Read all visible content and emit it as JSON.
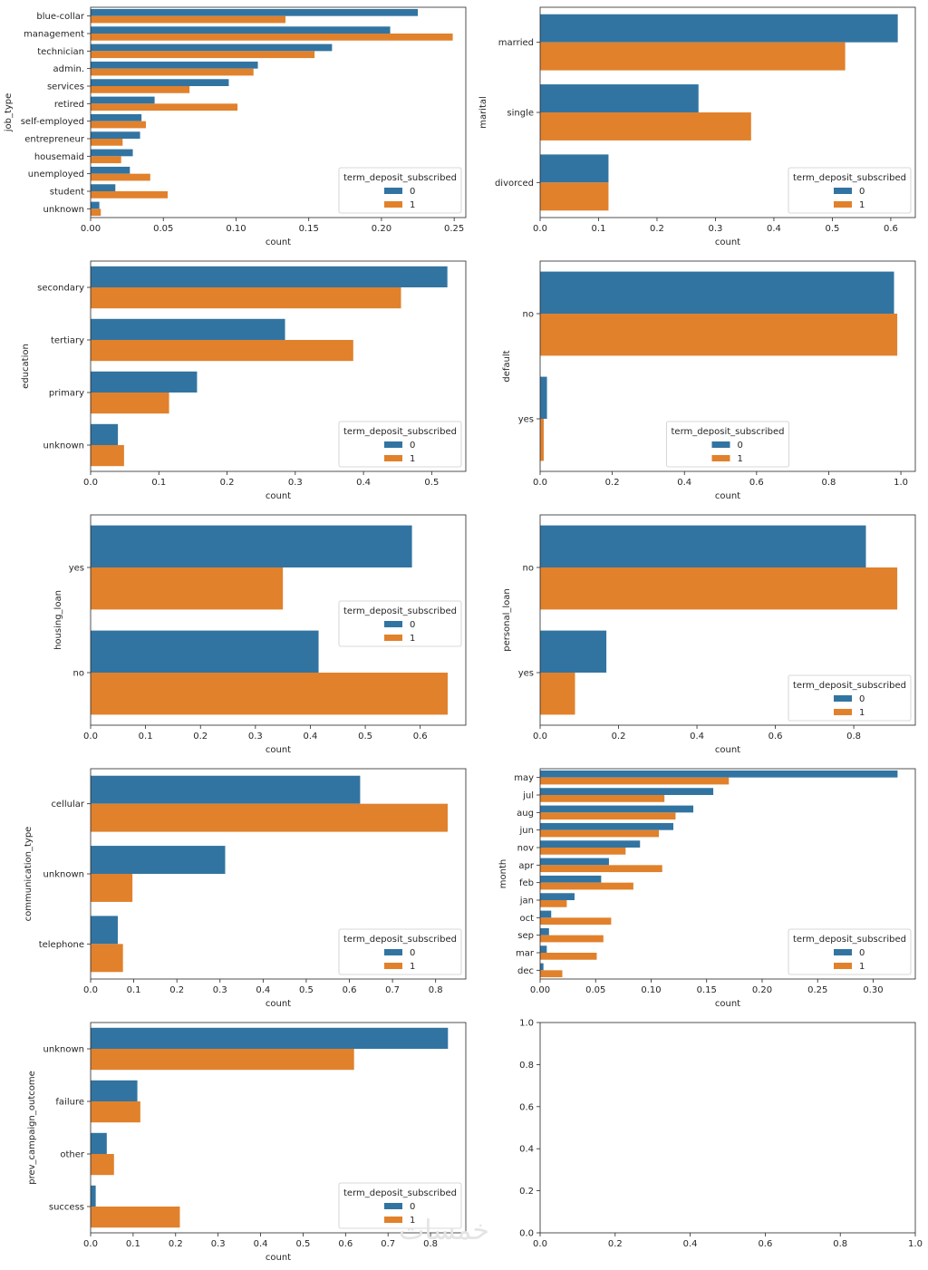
{
  "figure": {
    "watermark": "خمسات",
    "colors": {
      "series0": "#3274a1",
      "series1": "#e1812c",
      "axis": "#262626"
    }
  },
  "chart_data": [
    {
      "type": "bar",
      "orientation": "horizontal",
      "ylabel": "job_type",
      "xlabel": "count",
      "categories": [
        "blue-collar",
        "management",
        "technician",
        "admin.",
        "services",
        "retired",
        "self-employed",
        "entrepreneur",
        "housemaid",
        "unemployed",
        "student",
        "unknown"
      ],
      "series": [
        {
          "name": "0",
          "values": [
            0.225,
            0.206,
            0.166,
            0.115,
            0.095,
            0.044,
            0.035,
            0.034,
            0.029,
            0.027,
            0.017,
            0.006
          ]
        },
        {
          "name": "1",
          "values": [
            0.134,
            0.249,
            0.154,
            0.112,
            0.068,
            0.101,
            0.038,
            0.022,
            0.021,
            0.041,
            0.053,
            0.007
          ]
        }
      ],
      "xlim": [
        0,
        0.258
      ],
      "xticks": [
        0,
        0.05,
        0.1,
        0.15,
        0.2,
        0.25
      ],
      "xtick_labels": [
        "0.00",
        "0.05",
        "0.10",
        "0.15",
        "0.20",
        "0.25"
      ],
      "legend": {
        "title": "term_deposit_subscribed",
        "labels": [
          "0",
          "1"
        ],
        "placement": "bottom-right"
      }
    },
    {
      "type": "bar",
      "orientation": "horizontal",
      "ylabel": "marital",
      "xlabel": "count",
      "categories": [
        "married",
        "single",
        "divorced"
      ],
      "series": [
        {
          "name": "0",
          "values": [
            0.612,
            0.271,
            0.117
          ]
        },
        {
          "name": "1",
          "values": [
            0.522,
            0.361,
            0.117
          ]
        }
      ],
      "xlim": [
        0,
        0.642
      ],
      "xticks": [
        0,
        0.1,
        0.2,
        0.3,
        0.4,
        0.5,
        0.6
      ],
      "xtick_labels": [
        "0.0",
        "0.1",
        "0.2",
        "0.3",
        "0.4",
        "0.5",
        "0.6"
      ],
      "legend": {
        "title": "term_deposit_subscribed",
        "labels": [
          "0",
          "1"
        ],
        "placement": "bottom-right"
      }
    },
    {
      "type": "bar",
      "orientation": "horizontal",
      "ylabel": "education",
      "xlabel": "count",
      "categories": [
        "secondary",
        "tertiary",
        "primary",
        "unknown"
      ],
      "series": [
        {
          "name": "0",
          "values": [
            0.523,
            0.285,
            0.156,
            0.04
          ]
        },
        {
          "name": "1",
          "values": [
            0.455,
            0.385,
            0.115,
            0.049
          ]
        }
      ],
      "xlim": [
        0,
        0.55
      ],
      "xticks": [
        0,
        0.1,
        0.2,
        0.3,
        0.4,
        0.5
      ],
      "xtick_labels": [
        "0.0",
        "0.1",
        "0.2",
        "0.3",
        "0.4",
        "0.5"
      ],
      "legend": {
        "title": "term_deposit_subscribed",
        "labels": [
          "0",
          "1"
        ],
        "placement": "bottom-right"
      }
    },
    {
      "type": "bar",
      "orientation": "horizontal",
      "ylabel": "default",
      "xlabel": "count",
      "categories": [
        "no",
        "yes"
      ],
      "series": [
        {
          "name": "0",
          "values": [
            0.981,
            0.019
          ]
        },
        {
          "name": "1",
          "values": [
            0.99,
            0.01
          ]
        }
      ],
      "xlim": [
        0,
        1.04
      ],
      "xticks": [
        0,
        0.2,
        0.4,
        0.6,
        0.8,
        1.0
      ],
      "xtick_labels": [
        "0.0",
        "0.2",
        "0.4",
        "0.6",
        "0.8",
        "1.0"
      ],
      "legend": {
        "title": "term_deposit_subscribed",
        "labels": [
          "0",
          "1"
        ],
        "placement": "bottom-center"
      }
    },
    {
      "type": "bar",
      "orientation": "horizontal",
      "ylabel": "housing_loan",
      "xlabel": "count",
      "categories": [
        "yes",
        "no"
      ],
      "series": [
        {
          "name": "0",
          "values": [
            0.585,
            0.415
          ]
        },
        {
          "name": "1",
          "values": [
            0.35,
            0.65
          ]
        }
      ],
      "xlim": [
        0,
        0.683
      ],
      "xticks": [
        0,
        0.1,
        0.2,
        0.3,
        0.4,
        0.5,
        0.6
      ],
      "xtick_labels": [
        "0.0",
        "0.1",
        "0.2",
        "0.3",
        "0.4",
        "0.5",
        "0.6"
      ],
      "legend": {
        "title": "term_deposit_subscribed",
        "labels": [
          "0",
          "1"
        ],
        "placement": "center-right"
      }
    },
    {
      "type": "bar",
      "orientation": "horizontal",
      "ylabel": "personal_loan",
      "xlabel": "count",
      "categories": [
        "no",
        "yes"
      ],
      "series": [
        {
          "name": "0",
          "values": [
            0.831,
            0.169
          ]
        },
        {
          "name": "1",
          "values": [
            0.911,
            0.089
          ]
        }
      ],
      "xlim": [
        0,
        0.957
      ],
      "xticks": [
        0,
        0.2,
        0.4,
        0.6,
        0.8
      ],
      "xtick_labels": [
        "0.0",
        "0.2",
        "0.4",
        "0.6",
        "0.8"
      ],
      "legend": {
        "title": "term_deposit_subscribed",
        "labels": [
          "0",
          "1"
        ],
        "placement": "bottom-right"
      }
    },
    {
      "type": "bar",
      "orientation": "horizontal",
      "ylabel": "communication_type",
      "xlabel": "count",
      "categories": [
        "cellular",
        "unknown",
        "telephone"
      ],
      "series": [
        {
          "name": "0",
          "values": [
            0.625,
            0.312,
            0.063
          ]
        },
        {
          "name": "1",
          "values": [
            0.828,
            0.097,
            0.075
          ]
        }
      ],
      "xlim": [
        0,
        0.87
      ],
      "xticks": [
        0,
        0.1,
        0.2,
        0.3,
        0.4,
        0.5,
        0.6,
        0.7,
        0.8
      ],
      "xtick_labels": [
        "0.0",
        "0.1",
        "0.2",
        "0.3",
        "0.4",
        "0.5",
        "0.6",
        "0.7",
        "0.8"
      ],
      "legend": {
        "title": "term_deposit_subscribed",
        "labels": [
          "0",
          "1"
        ],
        "placement": "bottom-right"
      }
    },
    {
      "type": "bar",
      "orientation": "horizontal",
      "ylabel": "month",
      "xlabel": "count",
      "categories": [
        "may",
        "jul",
        "aug",
        "jun",
        "nov",
        "apr",
        "feb",
        "jan",
        "oct",
        "sep",
        "mar",
        "dec"
      ],
      "series": [
        {
          "name": "0",
          "values": [
            0.322,
            0.156,
            0.138,
            0.12,
            0.09,
            0.062,
            0.055,
            0.031,
            0.01,
            0.008,
            0.006,
            0.003
          ]
        },
        {
          "name": "1",
          "values": [
            0.17,
            0.112,
            0.122,
            0.107,
            0.077,
            0.11,
            0.084,
            0.024,
            0.064,
            0.057,
            0.051,
            0.02
          ]
        }
      ],
      "xlim": [
        0,
        0.338
      ],
      "xticks": [
        0,
        0.05,
        0.1,
        0.15,
        0.2,
        0.25,
        0.3
      ],
      "xtick_labels": [
        "0.00",
        "0.05",
        "0.10",
        "0.15",
        "0.20",
        "0.25",
        "0.30"
      ],
      "legend": {
        "title": "term_deposit_subscribed",
        "labels": [
          "0",
          "1"
        ],
        "placement": "bottom-right"
      }
    },
    {
      "type": "bar",
      "orientation": "horizontal",
      "ylabel": "prev_campaign_outcome",
      "xlabel": "count",
      "categories": [
        "unknown",
        "failure",
        "other",
        "success"
      ],
      "series": [
        {
          "name": "0",
          "values": [
            0.841,
            0.11,
            0.038,
            0.012
          ]
        },
        {
          "name": "1",
          "values": [
            0.62,
            0.117,
            0.055,
            0.21
          ]
        }
      ],
      "xlim": [
        0,
        0.883
      ],
      "xticks": [
        0,
        0.1,
        0.2,
        0.3,
        0.4,
        0.5,
        0.6,
        0.7,
        0.8
      ],
      "xtick_labels": [
        "0.0",
        "0.1",
        "0.2",
        "0.3",
        "0.4",
        "0.5",
        "0.6",
        "0.7",
        "0.8"
      ],
      "legend": {
        "title": "term_deposit_subscribed",
        "labels": [
          "0",
          "1"
        ],
        "placement": "bottom-right"
      }
    },
    {
      "type": "bar",
      "orientation": "horizontal",
      "ylabel": "",
      "xlabel": "",
      "categories": [],
      "series": [],
      "xlim": [
        0,
        1.0
      ],
      "xticks": [
        0,
        0.2,
        0.4,
        0.6,
        0.8,
        1.0
      ],
      "xtick_labels": [
        "0.0",
        "0.2",
        "0.4",
        "0.6",
        "0.8",
        "1.0"
      ],
      "ylim": [
        0,
        1.0
      ],
      "yticks": [
        0,
        0.2,
        0.4,
        0.6,
        0.8,
        1.0
      ],
      "ytick_labels": [
        "0.0",
        "0.2",
        "0.4",
        "0.6",
        "0.8",
        "1.0"
      ],
      "empty": true
    }
  ]
}
